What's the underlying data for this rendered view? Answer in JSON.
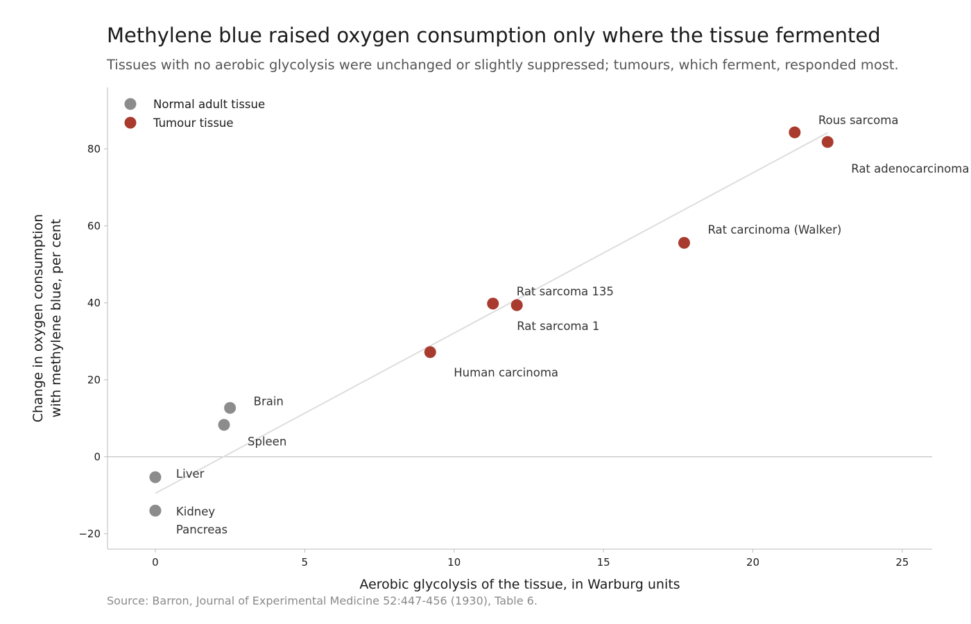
{
  "chart_data": {
    "type": "scatter",
    "title": "Methylene blue raised oxygen consumption only where the tissue fermented",
    "subtitle": "Tissues with no aerobic glycolysis were unchanged or slightly suppressed; tumours, which ferment, responded most.",
    "source": "Source: Barron, Journal of Experimental Medicine 52:447-456 (1930), Table 6.",
    "xlabel": "Aerobic glycolysis of the tissue, in Warburg units",
    "ylabel": [
      "Change in oxygen consumption",
      "with methylene blue, per cent"
    ],
    "xlim": [
      -1.6,
      26
    ],
    "ylim": [
      -24,
      96
    ],
    "x_ticks": [
      0,
      5,
      10,
      15,
      20,
      25
    ],
    "y_ticks": [
      -20,
      0,
      20,
      40,
      60,
      80
    ],
    "y_tick_labels": [
      "−20",
      "0",
      "20",
      "40",
      "60",
      "80"
    ],
    "grid": false,
    "zero_line": true,
    "legend": {
      "position": "top-left"
    },
    "colors": {
      "normal": "#8c8c8c",
      "tumour": "#a93a2e",
      "trend": "#dddddd",
      "axis": "#bbbbbb"
    },
    "trend_line": {
      "x": [
        0,
        22.5
      ],
      "y": [
        -9.5,
        84.2
      ]
    },
    "series": [
      {
        "name": "Normal adult tissue",
        "key": "normal",
        "points": [
          {
            "label": "Brain",
            "x": 2.5,
            "y": 12.7
          },
          {
            "label": "Spleen",
            "x": 2.3,
            "y": 8.3
          },
          {
            "label": "Liver",
            "x": 0,
            "y": -5.3
          },
          {
            "label": "Pancreas",
            "x": 0,
            "y": -14.0
          },
          {
            "label": "Kidney",
            "x": 0,
            "y": -14.0
          }
        ]
      },
      {
        "name": "Tumour tissue",
        "key": "tumour",
        "points": [
          {
            "label": "Rous sarcoma",
            "x": 21.4,
            "y": 84.3
          },
          {
            "label": "Rat adenocarcinoma",
            "x": 22.5,
            "y": 81.8
          },
          {
            "label": "Rat carcinoma (Walker)",
            "x": 17.7,
            "y": 55.6
          },
          {
            "label": "Rat sarcoma 135",
            "x": 11.3,
            "y": 39.8
          },
          {
            "label": "Rat sarcoma 1",
            "x": 12.1,
            "y": 39.4
          },
          {
            "label": "Human carcinoma",
            "x": 9.2,
            "y": 27.2
          }
        ]
      }
    ]
  }
}
